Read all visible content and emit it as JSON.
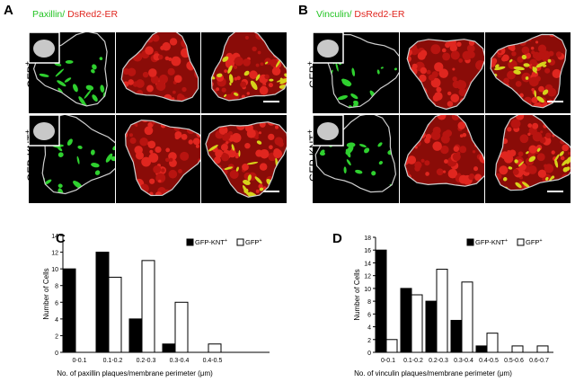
{
  "panels": {
    "A": {
      "letter": "A",
      "stain_green": "Paxillin/",
      "stain_red": " DsRed2-ER",
      "row1": "GFP",
      "row2": "GFP-KNT",
      "sup": "+"
    },
    "B": {
      "letter": "B",
      "stain_green": "Vinculin/",
      "stain_red": " DsRed2-ER",
      "row1": "GFP",
      "row2": "GFP-KNT",
      "sup": "+"
    },
    "C": {
      "letter": "C"
    },
    "D": {
      "letter": "D"
    }
  },
  "colors": {
    "green": "#22c322",
    "red": "#e0261f"
  },
  "chart_data": [
    {
      "type": "bar",
      "panel": "C",
      "categories": [
        "0-0.1",
        "0.1-0.2",
        "0.2-0.3",
        "0.3-0.4",
        "0.4-0.5"
      ],
      "series": [
        {
          "name": "GFP-KNT+",
          "values": [
            10,
            12,
            4,
            1,
            0
          ],
          "fill": "#000000"
        },
        {
          "name": "GFP+",
          "values": [
            0,
            9,
            11,
            6,
            1
          ],
          "fill": "#ffffff"
        }
      ],
      "ylabel": "Number of Cells",
      "xlabel": "No. of paxillin plaques/membrane perimeter (μm)",
      "ylim": [
        0,
        14
      ],
      "yticks": [
        0,
        2,
        4,
        6,
        8,
        10,
        12,
        14
      ],
      "tick_labels": [
        "0-0.1",
        "0.1-0.2",
        "0.2-0.3",
        "0.3-0.4",
        "0.4-0.5"
      ],
      "legend": [
        "GFP-KNT+",
        "GFP+"
      ],
      "legend_position": "top-right",
      "grid": false
    },
    {
      "type": "bar",
      "panel": "D",
      "categories": [
        "0-0.1",
        "0.1-0.2",
        "0.2-0.3",
        "0.3-0.4",
        "0.4-0.5",
        "0.5-0.6",
        "0.6-0.7"
      ],
      "series": [
        {
          "name": "GFP-KNT+",
          "values": [
            16,
            10,
            8,
            5,
            1,
            0,
            0
          ],
          "fill": "#000000"
        },
        {
          "name": "GFP+",
          "values": [
            2,
            9,
            13,
            11,
            3,
            1,
            1
          ],
          "fill": "#ffffff"
        }
      ],
      "ylabel": "Number of Cells",
      "xlabel": "No. of vinculin plaques/membrane perimeter (μm)",
      "ylim": [
        0,
        18
      ],
      "yticks": [
        0,
        2,
        4,
        6,
        8,
        10,
        12,
        14,
        16,
        18
      ],
      "tick_labels": [
        "0-0.1",
        "0.1-0.2",
        "0.2-0.3",
        "0.3-0.4",
        "0.4-0.5",
        "0.5-0.6",
        "0.6-0.7"
      ],
      "legend": [
        "GFP-KNT+",
        "GFP+"
      ],
      "legend_position": "top-right",
      "grid": false
    }
  ]
}
